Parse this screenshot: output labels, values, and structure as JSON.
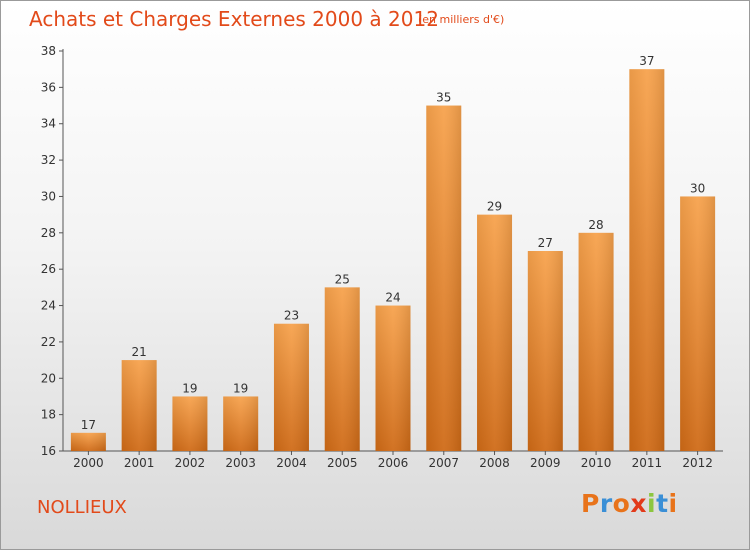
{
  "header": {
    "title": "Achats et Charges Externes 2000 à 2012",
    "subtitle": "(en milliers d'€)"
  },
  "footer": {
    "commune": "NOLLIEUX",
    "logo_letters": [
      "P",
      "r",
      "o",
      "x",
      "i",
      "t",
      "i"
    ],
    "logo_colors": [
      "#e8731a",
      "#3a8fd6",
      "#e8731a",
      "#e23a1a",
      "#8cc63f",
      "#3a8fd6",
      "#e8731a"
    ]
  },
  "chart_data": {
    "type": "bar",
    "title": "Achats et Charges Externes 2000 à 2012",
    "categories": [
      "2000",
      "2001",
      "2002",
      "2003",
      "2004",
      "2005",
      "2006",
      "2007",
      "2008",
      "2009",
      "2010",
      "2011",
      "2012"
    ],
    "values": [
      17,
      21,
      19,
      19,
      23,
      25,
      24,
      35,
      29,
      27,
      28,
      37,
      30
    ],
    "ylim": [
      16,
      38
    ],
    "yticks": [
      16,
      18,
      20,
      22,
      24,
      26,
      28,
      30,
      32,
      34,
      36,
      38
    ],
    "grid": false,
    "bar_color": "#f0913a",
    "xlabel": "",
    "ylabel": ""
  }
}
